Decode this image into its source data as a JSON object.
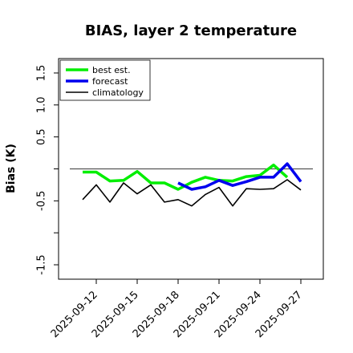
{
  "chart_data": {
    "type": "line",
    "title": "BIAS, layer 2 temperature",
    "xlabel": "",
    "ylabel": "Bias (K)",
    "ylim": [
      -1.6,
      1.6
    ],
    "yticks": [
      -1.5,
      -1.0,
      -0.5,
      0.0,
      0.5,
      1.0,
      1.5
    ],
    "ytick_labels": [
      "-1.5",
      "",
      "-0.5",
      "",
      "0.5",
      "1.0",
      "1.5"
    ],
    "x_dates": [
      "2025-09-11",
      "2025-09-12",
      "2025-09-13",
      "2025-09-14",
      "2025-09-15",
      "2025-09-16",
      "2025-09-17",
      "2025-09-18",
      "2025-09-19",
      "2025-09-20",
      "2025-09-21",
      "2025-09-22",
      "2025-09-23",
      "2025-09-24",
      "2025-09-25",
      "2025-09-26",
      "2025-09-27"
    ],
    "xticks": [
      "2025-09-12",
      "2025-09-15",
      "2025-09-18",
      "2025-09-21",
      "2025-09-24",
      "2025-09-27"
    ],
    "xtick_colors": [
      "#000000",
      "#000000",
      "#228B22",
      "#000000",
      "#000000",
      "#000000"
    ],
    "zero_line": 0.0,
    "series": [
      {
        "name": "best est.",
        "color": "#00ee00",
        "width": 3.5,
        "values": [
          -0.05,
          -0.05,
          -0.19,
          -0.18,
          -0.04,
          -0.22,
          -0.22,
          -0.32,
          -0.21,
          -0.13,
          -0.18,
          -0.19,
          -0.12,
          -0.1,
          0.06,
          -0.13,
          null
        ]
      },
      {
        "name": "forecast",
        "color": "#0000ee",
        "width": 3.5,
        "values": [
          null,
          null,
          null,
          null,
          null,
          null,
          null,
          -0.22,
          -0.32,
          -0.28,
          -0.18,
          -0.26,
          -0.2,
          -0.13,
          -0.13,
          0.08,
          -0.2
        ]
      },
      {
        "name": "climatology",
        "color": "#000000",
        "width": 1.6,
        "values": [
          -0.48,
          -0.25,
          -0.52,
          -0.22,
          -0.39,
          -0.25,
          -0.52,
          -0.48,
          -0.58,
          -0.4,
          -0.29,
          -0.58,
          -0.31,
          -0.32,
          -0.31,
          -0.17,
          -0.33
        ]
      }
    ],
    "legend_position": "top-left",
    "grid": false
  }
}
